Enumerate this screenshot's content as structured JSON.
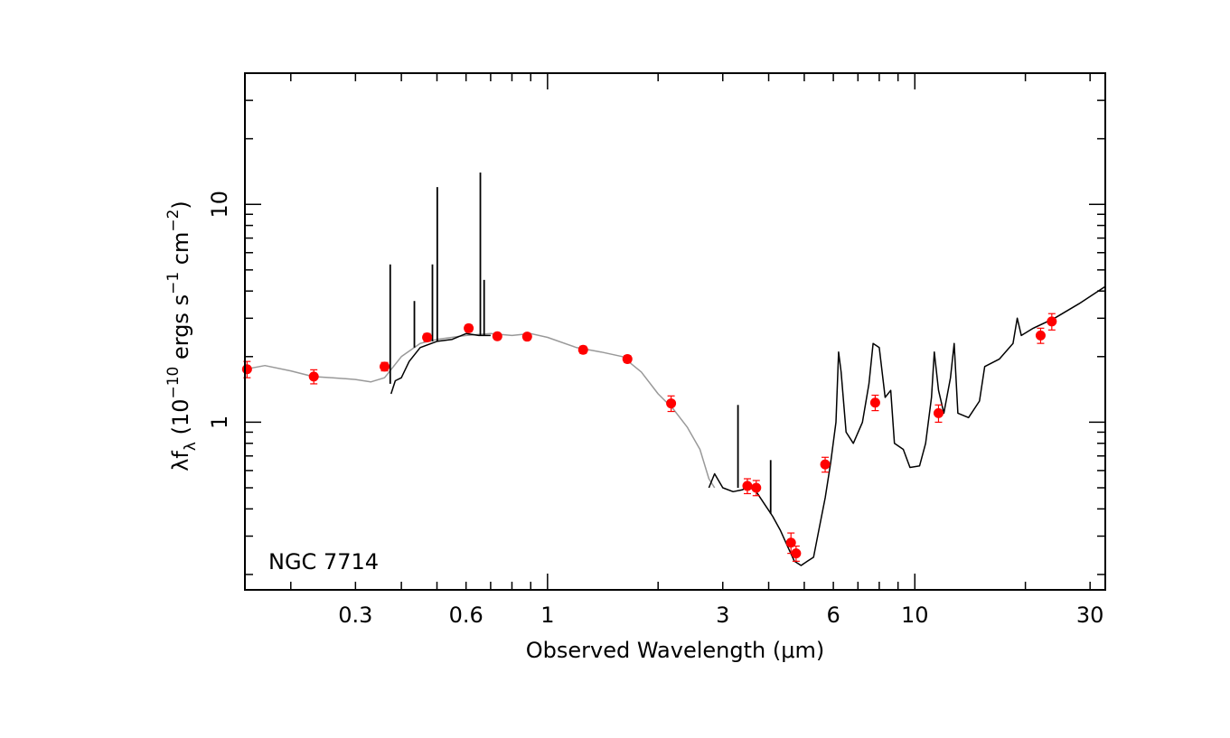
{
  "chart_data": {
    "type": "scatter",
    "log_x": true,
    "log_y": true,
    "xlim": [
      0.15,
      33
    ],
    "ylim": [
      0.17,
      40
    ],
    "xlabel": "Observed Wavelength (μm)",
    "ylabel_parts": {
      "main": "λf",
      "sub": "λ",
      "open": " (10",
      "exp1": "−10",
      "mid1": " ergs s",
      "exp2": "−1",
      "mid2": " cm",
      "exp3": "−2",
      "close": ")"
    },
    "xticks": [
      {
        "value": 0.3,
        "label": "0.3"
      },
      {
        "value": 0.6,
        "label": "0.6"
      },
      {
        "value": 1,
        "label": "1"
      },
      {
        "value": 3,
        "label": "3"
      },
      {
        "value": 6,
        "label": "6"
      },
      {
        "value": 10,
        "label": "10"
      },
      {
        "value": 30,
        "label": "30"
      }
    ],
    "yticks": [
      {
        "value": 1,
        "label": "1"
      },
      {
        "value": 10,
        "label": "10"
      }
    ],
    "annotation": "NGC 7714",
    "colors": {
      "points": "#ff0000",
      "spectrum_model": "#999999",
      "spectrum_observed": "#000000",
      "axes": "#000000"
    },
    "series": [
      {
        "type": "scatter_with_errors",
        "points": [
          {
            "x": 0.152,
            "y": 1.75,
            "err": 0.15
          },
          {
            "x": 0.231,
            "y": 1.62,
            "err": 0.12
          },
          {
            "x": 0.36,
            "y": 1.8,
            "err": 0.08
          },
          {
            "x": 0.47,
            "y": 2.45,
            "err": 0.1
          },
          {
            "x": 0.61,
            "y": 2.7,
            "err": 0.1
          },
          {
            "x": 0.73,
            "y": 2.48,
            "err": 0.08
          },
          {
            "x": 0.88,
            "y": 2.47,
            "err": 0.08
          },
          {
            "x": 1.25,
            "y": 2.15,
            "err": 0.08
          },
          {
            "x": 1.65,
            "y": 1.95,
            "err": 0.07
          },
          {
            "x": 2.17,
            "y": 1.22,
            "err": 0.1
          },
          {
            "x": 3.5,
            "y": 0.51,
            "err": 0.04
          },
          {
            "x": 3.7,
            "y": 0.5,
            "err": 0.04
          },
          {
            "x": 4.6,
            "y": 0.28,
            "err": 0.03
          },
          {
            "x": 4.75,
            "y": 0.25,
            "err": 0.02
          },
          {
            "x": 5.7,
            "y": 0.64,
            "err": 0.05
          },
          {
            "x": 7.8,
            "y": 1.23,
            "err": 0.1
          },
          {
            "x": 11.6,
            "y": 1.1,
            "err": 0.1
          },
          {
            "x": 22.0,
            "y": 2.5,
            "err": 0.2
          },
          {
            "x": 23.6,
            "y": 2.9,
            "err": 0.25
          }
        ]
      },
      {
        "type": "line",
        "style": "model",
        "points": [
          [
            0.15,
            1.75
          ],
          [
            0.17,
            1.82
          ],
          [
            0.2,
            1.72
          ],
          [
            0.23,
            1.62
          ],
          [
            0.26,
            1.6
          ],
          [
            0.3,
            1.57
          ],
          [
            0.33,
            1.53
          ],
          [
            0.36,
            1.6
          ],
          [
            0.4,
            2.0
          ],
          [
            0.45,
            2.3
          ],
          [
            0.5,
            2.4
          ],
          [
            0.6,
            2.5
          ],
          [
            0.7,
            2.55
          ],
          [
            0.8,
            2.5
          ],
          [
            0.9,
            2.55
          ],
          [
            1.0,
            2.45
          ],
          [
            1.2,
            2.2
          ],
          [
            1.4,
            2.1
          ],
          [
            1.6,
            2.0
          ],
          [
            1.8,
            1.7
          ],
          [
            2.0,
            1.35
          ],
          [
            2.2,
            1.15
          ],
          [
            2.4,
            0.95
          ],
          [
            2.6,
            0.75
          ],
          [
            2.75,
            0.55
          ],
          [
            2.85,
            0.5
          ]
        ]
      },
      {
        "type": "line",
        "style": "observed",
        "points": [
          [
            0.375,
            1.35
          ],
          [
            0.385,
            1.55
          ],
          [
            0.4,
            1.6
          ],
          [
            0.42,
            1.9
          ],
          [
            0.45,
            2.2
          ],
          [
            0.5,
            2.35
          ],
          [
            0.55,
            2.4
          ],
          [
            0.6,
            2.55
          ],
          [
            0.65,
            2.5
          ],
          [
            0.7,
            2.5
          ]
        ]
      },
      {
        "type": "line",
        "style": "observed",
        "points": [
          [
            2.75,
            0.5
          ],
          [
            2.85,
            0.58
          ],
          [
            3.0,
            0.5
          ],
          [
            3.2,
            0.48
          ],
          [
            3.4,
            0.49
          ],
          [
            3.5,
            0.51
          ],
          [
            3.7,
            0.48
          ],
          [
            3.9,
            0.42
          ],
          [
            4.1,
            0.37
          ],
          [
            4.3,
            0.32
          ],
          [
            4.5,
            0.27
          ],
          [
            4.7,
            0.23
          ],
          [
            4.9,
            0.22
          ],
          [
            5.1,
            0.23
          ],
          [
            5.3,
            0.24
          ],
          [
            5.5,
            0.33
          ],
          [
            5.7,
            0.45
          ],
          [
            5.9,
            0.65
          ],
          [
            6.1,
            1.0
          ],
          [
            6.2,
            2.1
          ],
          [
            6.3,
            1.7
          ],
          [
            6.5,
            0.9
          ],
          [
            6.8,
            0.8
          ],
          [
            7.2,
            1.0
          ],
          [
            7.5,
            1.5
          ],
          [
            7.7,
            2.3
          ],
          [
            8.0,
            2.2
          ],
          [
            8.3,
            1.3
          ],
          [
            8.6,
            1.4
          ],
          [
            8.8,
            0.8
          ],
          [
            9.3,
            0.75
          ],
          [
            9.7,
            0.62
          ],
          [
            10.3,
            0.63
          ],
          [
            10.7,
            0.8
          ],
          [
            11.1,
            1.3
          ],
          [
            11.3,
            2.1
          ],
          [
            11.6,
            1.4
          ],
          [
            12.0,
            1.1
          ],
          [
            12.5,
            1.6
          ],
          [
            12.8,
            2.3
          ],
          [
            13.1,
            1.1
          ],
          [
            14.0,
            1.05
          ],
          [
            15.0,
            1.25
          ],
          [
            15.5,
            1.8
          ],
          [
            17.0,
            1.95
          ],
          [
            18.5,
            2.3
          ],
          [
            19.0,
            3.0
          ],
          [
            19.5,
            2.5
          ],
          [
            21.0,
            2.7
          ],
          [
            24.0,
            3.0
          ],
          [
            28.0,
            3.5
          ],
          [
            33.0,
            4.2
          ]
        ]
      },
      {
        "type": "emission_lines",
        "style": "observed",
        "lines": [
          {
            "x": 0.373,
            "base": 1.5,
            "peak": 5.3
          },
          {
            "x": 0.434,
            "base": 2.2,
            "peak": 3.6
          },
          {
            "x": 0.486,
            "base": 2.35,
            "peak": 5.3
          },
          {
            "x": 0.501,
            "base": 2.35,
            "peak": 12.0
          },
          {
            "x": 0.6563,
            "base": 2.5,
            "peak": 14.0
          },
          {
            "x": 0.672,
            "base": 2.5,
            "peak": 4.5
          },
          {
            "x": 3.3,
            "base": 0.5,
            "peak": 1.2
          },
          {
            "x": 4.05,
            "base": 0.38,
            "peak": 0.67
          }
        ]
      }
    ]
  }
}
